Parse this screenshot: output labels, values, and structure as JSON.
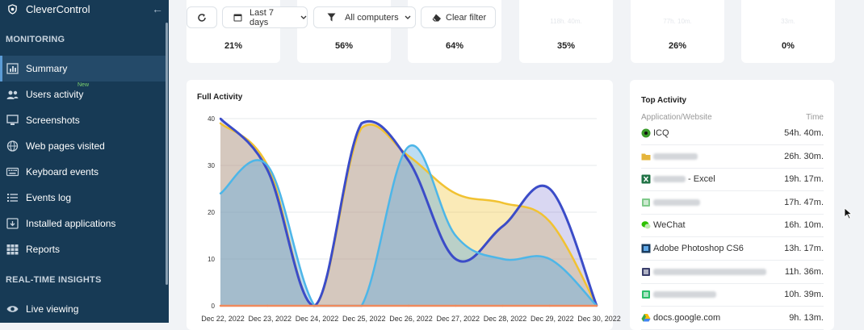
{
  "app": {
    "name": "CleverControl",
    "accent": "#5b9bd5",
    "sidebar_bg": "#173a55"
  },
  "sidebar": {
    "monitoring_label": "MONITORING",
    "realtime_label": "REAL-TIME INSIGHTS",
    "items": [
      {
        "label": "Summary",
        "icon": "summary-icon",
        "active": true
      },
      {
        "label": "Users activity",
        "icon": "users-icon",
        "badge": "New"
      },
      {
        "label": "Screenshots",
        "icon": "monitor-icon"
      },
      {
        "label": "Web pages visited",
        "icon": "globe-icon"
      },
      {
        "label": "Keyboard events",
        "icon": "keyboard-icon"
      },
      {
        "label": "Events log",
        "icon": "list-icon"
      },
      {
        "label": "Installed applications",
        "icon": "apps-icon"
      },
      {
        "label": "Reports",
        "icon": "grid-icon"
      },
      {
        "label": "Live viewing",
        "icon": "eye-icon"
      }
    ]
  },
  "toolbar": {
    "refresh_icon": "refresh-icon",
    "date_range": "Last 7 days",
    "computers": "All computers",
    "clear_filter": "Clear filter"
  },
  "stats": [
    {
      "value": "21%"
    },
    {
      "value": "56%"
    },
    {
      "value": "64%"
    },
    {
      "value": "35%",
      "ghost": "118h. 40m."
    },
    {
      "value": "26%",
      "ghost": "77h. 10m."
    },
    {
      "value": "0%",
      "ghost": "33m."
    }
  ],
  "full_activity": {
    "title": "Full Activity"
  },
  "chart_data": {
    "type": "area",
    "title": "Full Activity",
    "categories": [
      "Dec 22, 2022",
      "Dec 23, 2022",
      "Dec 24, 2022",
      "Dec 25, 2022",
      "Dec 26, 2022",
      "Dec 27, 2022",
      "Dec 28, 2022",
      "Dec 29, 2022",
      "Dec 30, 2022"
    ],
    "ylim": [
      0,
      40
    ],
    "yticks": [
      0,
      10,
      20,
      30,
      40
    ],
    "grid": true,
    "series": [
      {
        "color": "#f1c232",
        "values": [
          39,
          30,
          0,
          38,
          32,
          24,
          22,
          18,
          0
        ]
      },
      {
        "color": "#3b4cc8",
        "values": [
          40,
          29,
          0,
          39,
          31,
          10,
          17,
          25,
          0
        ]
      },
      {
        "color": "#4db6e8",
        "values": [
          24,
          30,
          0,
          0,
          34,
          15,
          10,
          10,
          0
        ]
      },
      {
        "color": "#f08a5d",
        "values": [
          0,
          0,
          0,
          0,
          0,
          0,
          0,
          0,
          0
        ]
      }
    ]
  },
  "top_activity": {
    "title": "Top Activity",
    "col_app": "Application/Website",
    "col_time": "Time",
    "rows": [
      {
        "name": "ICQ",
        "time": "54h. 40m.",
        "icon": "icq-icon",
        "icon_color": "#3a9a2a"
      },
      {
        "name": "",
        "blur_width": 55,
        "time": "26h. 30m.",
        "icon": "folder-icon",
        "icon_color": "#e5b53b"
      },
      {
        "name": " - Excel",
        "blur_width": 40,
        "time": "19h. 17m.",
        "icon": "excel-icon",
        "icon_color": "#1f7244"
      },
      {
        "name": "",
        "blur_width": 58,
        "time": "17h. 47m.",
        "icon": "app-icon",
        "icon_color": "#7fc98a"
      },
      {
        "name": "WeChat",
        "time": "16h. 10m.",
        "icon": "wechat-icon",
        "icon_color": "#2dc100"
      },
      {
        "name": "Adobe Photoshop CS6",
        "time": "13h. 17m.",
        "icon": "photoshop-icon",
        "icon_color": "#1b3c5f"
      },
      {
        "name": "",
        "blur_width": 140,
        "time": "11h. 36m.",
        "icon": "app-icon",
        "icon_color": "#3a3f6b"
      },
      {
        "name": "",
        "blur_width": 78,
        "time": "10h. 39m.",
        "icon": "app-icon",
        "icon_color": "#2dbf6c"
      },
      {
        "name": "docs.google.com",
        "time": "9h. 13m.",
        "icon": "google-drive-icon",
        "icon_color": "#4285f4"
      }
    ]
  }
}
